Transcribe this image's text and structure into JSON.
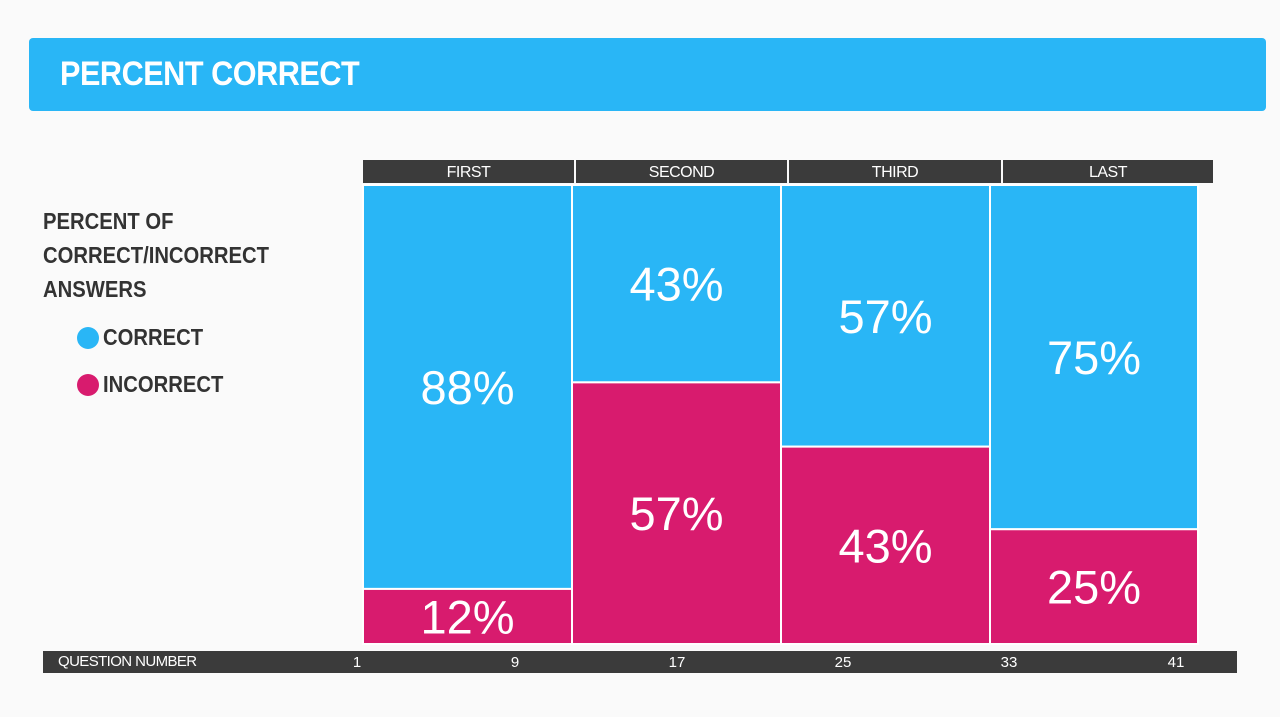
{
  "header": {
    "title": "PERCENT CORRECT"
  },
  "legend": {
    "title": "PERCENT OF\nCORRECT/INCORRECT\nANSWERS",
    "items": [
      {
        "label": "CORRECT",
        "color": "#29b6f6"
      },
      {
        "label": "INCORRECT",
        "color": "#d81b6e"
      }
    ]
  },
  "colors": {
    "header_bg": "#29b6f6",
    "correct": "#29b6f6",
    "incorrect": "#d81b6e",
    "band": "#3b3b3b"
  },
  "chart_data": {
    "type": "bar",
    "stacked": true,
    "variable_width": true,
    "title": "PERCENT CORRECT",
    "xlabel": "QUESTION NUMBER",
    "ylabel": "",
    "categories": [
      "FIRST",
      "SECOND",
      "THIRD",
      "LAST"
    ],
    "segments": [
      {
        "category": "FIRST",
        "start": 1,
        "end": 9
      },
      {
        "category": "SECOND",
        "start": 9,
        "end": 17
      },
      {
        "category": "THIRD",
        "start": 17,
        "end": 25
      },
      {
        "category": "LAST",
        "start": 25,
        "end": 33
      }
    ],
    "series": [
      {
        "name": "CORRECT",
        "values": [
          88,
          43,
          57,
          75
        ],
        "labels": [
          "88%",
          "43%",
          "57%",
          "75%"
        ]
      },
      {
        "name": "INCORRECT",
        "values": [
          12,
          57,
          43,
          25
        ],
        "labels": [
          "12%",
          "57%",
          "43%",
          "25%"
        ]
      }
    ],
    "x_ticks": [
      1,
      9,
      17,
      25,
      33,
      41
    ],
    "ylim": [
      0,
      100
    ],
    "grid": false,
    "legend_position": "left"
  }
}
